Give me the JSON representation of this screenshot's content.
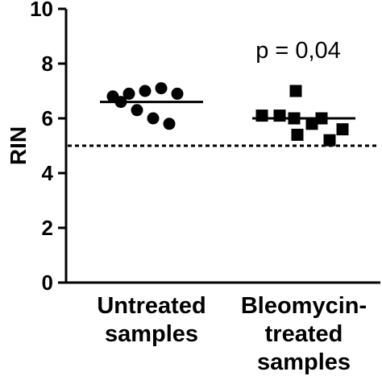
{
  "chart_data": {
    "type": "scatter",
    "ylabel": "RIN",
    "ylim": [
      0,
      10
    ],
    "yticks": [
      "0",
      "2",
      "4",
      "6",
      "8",
      "10"
    ],
    "categories": [
      [
        "Untreated",
        "samples"
      ],
      [
        "Bleomycin-",
        "treated",
        "samples"
      ]
    ],
    "series": [
      {
        "marker": "circle",
        "values": [
          6.8,
          6.9,
          7.0,
          7.1,
          6.9,
          6.6,
          6.3,
          6.0,
          5.8
        ],
        "mean": 6.6
      },
      {
        "marker": "square",
        "values": [
          7.0,
          6.1,
          6.1,
          6.0,
          6.0,
          5.8,
          5.6,
          5.4,
          5.2
        ],
        "mean": 6.0
      }
    ],
    "threshold": 5.0,
    "annotation": "p = 0,04"
  }
}
